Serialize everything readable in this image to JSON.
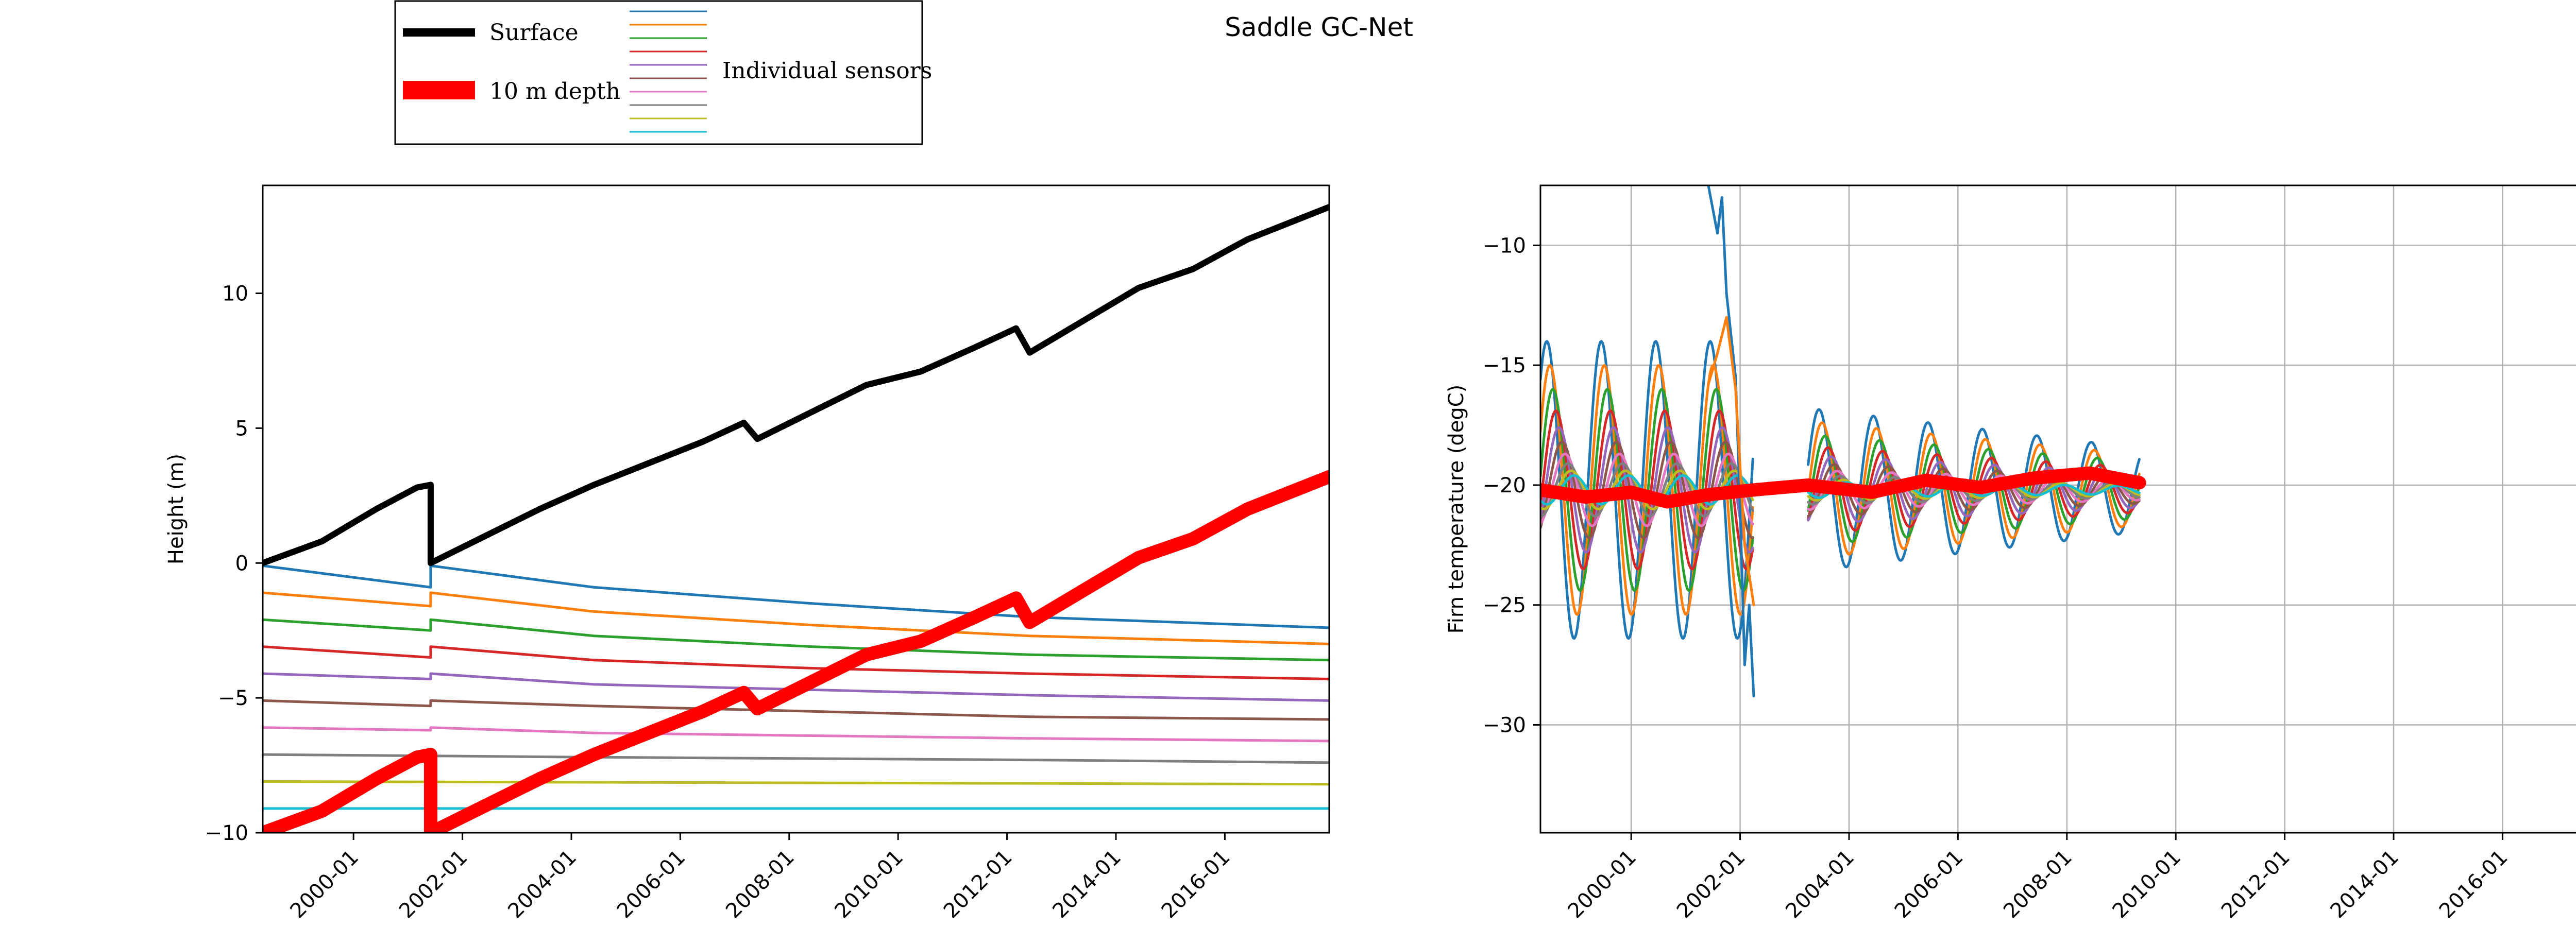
{
  "chart_data": {
    "title": "Saddle GC-Net",
    "legend": {
      "surface_label": "Surface",
      "depth_label": "10 m depth",
      "sensors_label": "Individual sensors",
      "colors": {
        "surface": "#000000",
        "depth": "#ff0000",
        "sensors": [
          "#1f77b4",
          "#ff7f0e",
          "#2ca02c",
          "#d62728",
          "#9467bd",
          "#8c564b",
          "#e377c2",
          "#7f7f7f",
          "#bcbd22",
          "#17becf"
        ]
      }
    },
    "panels": [
      {
        "type": "line",
        "ylabel": "Height (m)",
        "xlim": [
          "1998-05",
          "2017-12"
        ],
        "ylim": [
          -10,
          14
        ],
        "yticks": [
          -10,
          -5,
          0,
          5,
          10
        ],
        "xticks": [
          "2000-01",
          "2002-01",
          "2004-01",
          "2006-01",
          "2008-01",
          "2010-01",
          "2012-01",
          "2014-01",
          "2016-01"
        ],
        "grid": false,
        "series": [
          {
            "role": "surface",
            "color": "#000000",
            "points": [
              [
                "1998-05",
                0.0
              ],
              [
                "1999-06",
                0.8
              ],
              [
                "2000-06",
                2.0
              ],
              [
                "2001-03",
                2.8
              ],
              [
                "2001-06",
                2.9
              ],
              [
                "2001-06",
                0.0
              ],
              [
                "2002-06",
                1.0
              ],
              [
                "2003-06",
                2.0
              ],
              [
                "2004-06",
                2.9
              ],
              [
                "2005-06",
                3.7
              ],
              [
                "2006-06",
                4.5
              ],
              [
                "2007-03",
                5.2
              ],
              [
                "2007-06",
                4.6
              ],
              [
                "2008-06",
                5.6
              ],
              [
                "2009-06",
                6.6
              ],
              [
                "2010-06",
                7.1
              ],
              [
                "2011-06",
                8.0
              ],
              [
                "2012-03",
                8.7
              ],
              [
                "2012-06",
                7.8
              ],
              [
                "2013-06",
                9.0
              ],
              [
                "2014-06",
                10.2
              ],
              [
                "2015-06",
                10.9
              ],
              [
                "2016-06",
                12.0
              ],
              [
                "2017-12",
                13.2
              ]
            ]
          },
          {
            "role": "depth",
            "color": "#ff0000",
            "points": [
              [
                "1998-05",
                -10.0
              ],
              [
                "1999-06",
                -9.2
              ],
              [
                "2000-06",
                -8.0
              ],
              [
                "2001-03",
                -7.2
              ],
              [
                "2001-06",
                -7.1
              ],
              [
                "2001-06",
                -10.0
              ],
              [
                "2002-06",
                -9.0
              ],
              [
                "2003-06",
                -8.0
              ],
              [
                "2004-06",
                -7.1
              ],
              [
                "2005-06",
                -6.3
              ],
              [
                "2006-06",
                -5.5
              ],
              [
                "2007-03",
                -4.8
              ],
              [
                "2007-06",
                -5.4
              ],
              [
                "2008-06",
                -4.4
              ],
              [
                "2009-06",
                -3.4
              ],
              [
                "2010-06",
                -2.9
              ],
              [
                "2011-06",
                -2.0
              ],
              [
                "2012-03",
                -1.3
              ],
              [
                "2012-06",
                -2.2
              ],
              [
                "2013-06",
                -1.0
              ],
              [
                "2014-06",
                0.2
              ],
              [
                "2015-06",
                0.9
              ],
              [
                "2016-06",
                2.0
              ],
              [
                "2017-12",
                3.2
              ]
            ]
          },
          {
            "role": "sensor",
            "color": "#1f77b4",
            "points": [
              [
                "1998-05",
                -0.1
              ],
              [
                "2001-06",
                -0.9
              ],
              [
                "2001-06",
                -0.1
              ],
              [
                "2004-06",
                -0.9
              ],
              [
                "2008-06",
                -1.5
              ],
              [
                "2012-06",
                -2.0
              ],
              [
                "2017-12",
                -2.4
              ]
            ]
          },
          {
            "role": "sensor",
            "color": "#ff7f0e",
            "points": [
              [
                "1998-05",
                -1.1
              ],
              [
                "2001-06",
                -1.6
              ],
              [
                "2001-06",
                -1.1
              ],
              [
                "2004-06",
                -1.8
              ],
              [
                "2008-06",
                -2.3
              ],
              [
                "2012-06",
                -2.7
              ],
              [
                "2017-12",
                -3.0
              ]
            ]
          },
          {
            "role": "sensor",
            "color": "#2ca02c",
            "points": [
              [
                "1998-05",
                -2.1
              ],
              [
                "2001-06",
                -2.5
              ],
              [
                "2001-06",
                -2.1
              ],
              [
                "2004-06",
                -2.7
              ],
              [
                "2008-06",
                -3.1
              ],
              [
                "2012-06",
                -3.4
              ],
              [
                "2017-12",
                -3.6
              ]
            ]
          },
          {
            "role": "sensor",
            "color": "#d62728",
            "points": [
              [
                "1998-05",
                -3.1
              ],
              [
                "2001-06",
                -3.5
              ],
              [
                "2001-06",
                -3.1
              ],
              [
                "2004-06",
                -3.6
              ],
              [
                "2008-06",
                -3.9
              ],
              [
                "2012-06",
                -4.1
              ],
              [
                "2017-12",
                -4.3
              ]
            ]
          },
          {
            "role": "sensor",
            "color": "#9467bd",
            "points": [
              [
                "1998-05",
                -4.1
              ],
              [
                "2001-06",
                -4.3
              ],
              [
                "2001-06",
                -4.1
              ],
              [
                "2004-06",
                -4.5
              ],
              [
                "2008-06",
                -4.7
              ],
              [
                "2012-06",
                -4.9
              ],
              [
                "2017-12",
                -5.1
              ]
            ]
          },
          {
            "role": "sensor",
            "color": "#8c564b",
            "points": [
              [
                "1998-05",
                -5.1
              ],
              [
                "2001-06",
                -5.3
              ],
              [
                "2001-06",
                -5.1
              ],
              [
                "2004-06",
                -5.3
              ],
              [
                "2008-06",
                -5.5
              ],
              [
                "2012-06",
                -5.7
              ],
              [
                "2017-12",
                -5.8
              ]
            ]
          },
          {
            "role": "sensor",
            "color": "#e377c2",
            "points": [
              [
                "1998-05",
                -6.1
              ],
              [
                "2001-06",
                -6.2
              ],
              [
                "2001-06",
                -6.1
              ],
              [
                "2004-06",
                -6.3
              ],
              [
                "2008-06",
                -6.4
              ],
              [
                "2012-06",
                -6.5
              ],
              [
                "2017-12",
                -6.6
              ]
            ]
          },
          {
            "role": "sensor",
            "color": "#7f7f7f",
            "points": [
              [
                "1998-05",
                -7.1
              ],
              [
                "2004-06",
                -7.2
              ],
              [
                "2012-06",
                -7.3
              ],
              [
                "2017-12",
                -7.4
              ]
            ]
          },
          {
            "role": "sensor",
            "color": "#bcbd22",
            "points": [
              [
                "1998-05",
                -8.1
              ],
              [
                "2008-06",
                -8.15
              ],
              [
                "2017-12",
                -8.2
              ]
            ]
          },
          {
            "role": "sensor",
            "color": "#17becf",
            "points": [
              [
                "1998-05",
                -9.1
              ],
              [
                "2017-12",
                -9.1
              ]
            ]
          }
        ]
      },
      {
        "type": "line",
        "ylabel": "Firn temperature (degC)",
        "xlim": [
          "1998-05",
          "2017-12"
        ],
        "ylim": [
          -34.5,
          -7.5
        ],
        "yticks": [
          -30,
          -25,
          -20,
          -15,
          -10
        ],
        "xticks": [
          "2000-01",
          "2002-01",
          "2004-01",
          "2006-01",
          "2008-01",
          "2010-01",
          "2012-01",
          "2014-01",
          "2016-01"
        ],
        "grid": true,
        "oscillation": {
          "mean": -20.2,
          "period_years": 1.0,
          "amplitudes": [
            6.2,
            5.2,
            4.2,
            3.3,
            2.6,
            2.0,
            1.5,
            1.1,
            0.8,
            0.6
          ],
          "segments": [
            [
              "1998-05",
              "2002-04"
            ],
            [
              "2003-04",
              "2009-05"
            ]
          ],
          "damping_after_2003": 0.55
        },
        "extra_segments": [
          {
            "color": "#1f77b4",
            "points": [
              [
                "2001-06",
                -7.5
              ],
              [
                "2001-08",
                -9.5
              ],
              [
                "2001-09",
                -8.0
              ],
              [
                "2001-10",
                -12.0
              ],
              [
                "2001-12",
                -15.5
              ],
              [
                "2002-01",
                -21.0
              ],
              [
                "2002-02",
                -27.5
              ],
              [
                "2002-03",
                -25.0
              ],
              [
                "2002-04",
                -28.8
              ]
            ]
          },
          {
            "color": "#ff7f0e",
            "points": [
              [
                "2001-06",
                -15.8
              ],
              [
                "2001-08",
                -14.5
              ],
              [
                "2001-10",
                -13.0
              ],
              [
                "2001-12",
                -16.0
              ],
              [
                "2002-02",
                -22.5
              ],
              [
                "2002-04",
                -25.0
              ]
            ]
          }
        ],
        "depth_series": {
          "color": "#ff0000",
          "points": [
            [
              "1998-05",
              -20.2
            ],
            [
              "1999-03",
              -20.5
            ],
            [
              "2000-01",
              -20.3
            ],
            [
              "2000-09",
              -20.7
            ],
            [
              "2001-06",
              -20.4
            ],
            [
              "2002-04",
              -20.2
            ],
            [
              "2003-04",
              -20.0
            ],
            [
              "2004-06",
              -20.3
            ],
            [
              "2005-06",
              -19.8
            ],
            [
              "2006-06",
              -20.1
            ],
            [
              "2007-06",
              -19.7
            ],
            [
              "2008-06",
              -19.5
            ],
            [
              "2009-05",
              -19.9
            ]
          ]
        }
      }
    ]
  }
}
